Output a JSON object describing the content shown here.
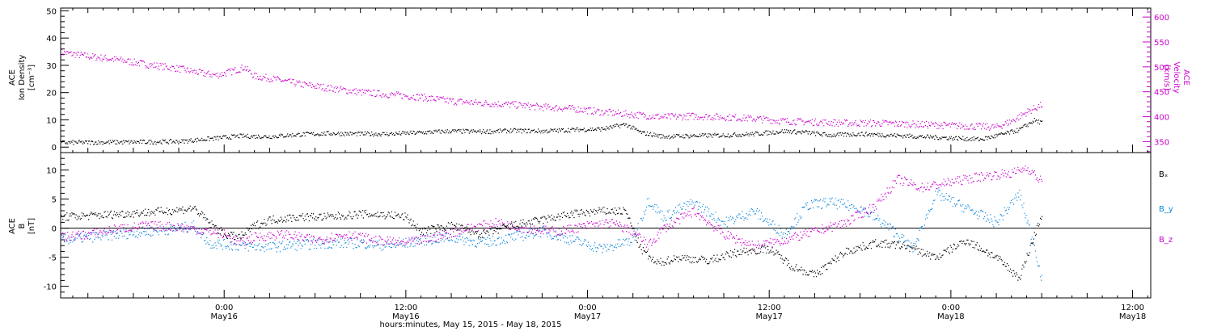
{
  "colors": {
    "black": "#000000",
    "magenta": "#cc00cc",
    "blue": "#1188dd"
  },
  "x_title": "hours:minutes, May 15, 2015 - May 18, 2015",
  "x_ticks": [
    {
      "time": "0:00",
      "date": "May16",
      "hour": 18
    },
    {
      "time": "12:00",
      "date": "May16",
      "hour": 30
    },
    {
      "time": "0:00",
      "date": "May17",
      "hour": 42
    },
    {
      "time": "12:00",
      "date": "May17",
      "hour": 54
    },
    {
      "time": "0:00",
      "date": "May18",
      "hour": 66
    },
    {
      "time": "12:00",
      "date": "May18",
      "hour": 78
    }
  ],
  "chart_data": [
    {
      "type": "scatter",
      "panel": "top",
      "left_axis_label": [
        "ACE",
        "Ion Density",
        "[cm⁻³]"
      ],
      "right_axis_label": [
        "ACE",
        "Velocity",
        "[km/s]"
      ],
      "xlim_hours": [
        7.2,
        79.2
      ],
      "ylim_left": [
        -2,
        51
      ],
      "yticks_left": [
        0,
        10,
        20,
        30,
        40,
        50
      ],
      "ylim_right": [
        328,
        618
      ],
      "yticks_right": [
        350,
        400,
        450,
        500,
        550,
        600
      ],
      "series": [
        {
          "name": "Ion Density",
          "axis": "left",
          "color": "black",
          "points": [
            [
              7.2,
              1.8
            ],
            [
              9,
              1.9
            ],
            [
              12,
              2.0
            ],
            [
              15,
              2.2
            ],
            [
              17,
              3.2
            ],
            [
              19,
              4.2
            ],
            [
              21,
              4.0
            ],
            [
              23,
              4.8
            ],
            [
              25,
              5.2
            ],
            [
              27,
              5.0
            ],
            [
              29,
              5.0
            ],
            [
              31,
              5.5
            ],
            [
              33,
              6.0
            ],
            [
              35,
              5.8
            ],
            [
              37,
              6.2
            ],
            [
              39,
              6.0
            ],
            [
              41,
              6.5
            ],
            [
              43,
              6.8
            ],
            [
              44.5,
              8.5
            ],
            [
              45.5,
              5.5
            ],
            [
              47,
              4.0
            ],
            [
              49,
              4.3
            ],
            [
              51,
              4.5
            ],
            [
              53,
              5.0
            ],
            [
              55,
              6.0
            ],
            [
              56.5,
              5.5
            ],
            [
              58,
              4.5
            ],
            [
              60,
              5.0
            ],
            [
              62,
              4.5
            ],
            [
              64,
              4.0
            ],
            [
              66,
              3.5
            ],
            [
              68,
              3.0
            ],
            [
              69.5,
              5.0
            ],
            [
              70.5,
              6.5
            ],
            [
              71.5,
              10.0
            ],
            [
              72,
              9.0
            ]
          ]
        },
        {
          "name": "Velocity",
          "axis": "right",
          "color": "magenta",
          "points": [
            [
              7.2,
              530
            ],
            [
              9,
              522
            ],
            [
              11,
              515
            ],
            [
              13,
              505
            ],
            [
              15,
              497
            ],
            [
              16.5,
              488
            ],
            [
              17.5,
              484
            ],
            [
              18.5,
              492
            ],
            [
              19.3,
              500
            ],
            [
              20,
              482
            ],
            [
              21,
              478
            ],
            [
              23,
              466
            ],
            [
              25,
              458
            ],
            [
              27,
              450
            ],
            [
              29,
              445
            ],
            [
              31,
              440
            ],
            [
              33,
              432
            ],
            [
              35,
              428
            ],
            [
              37,
              425
            ],
            [
              39,
              420
            ],
            [
              41,
              417
            ],
            [
              43,
              410
            ],
            [
              45,
              405
            ],
            [
              47,
              400
            ],
            [
              49,
              402
            ],
            [
              51,
              400
            ],
            [
              53,
              397
            ],
            [
              55,
              392
            ],
            [
              57,
              390
            ],
            [
              59,
              388
            ],
            [
              61,
              388
            ],
            [
              63,
              386
            ],
            [
              65,
              384
            ],
            [
              67,
              382
            ],
            [
              69,
              380
            ],
            [
              70,
              392
            ],
            [
              71,
              410
            ],
            [
              72,
              425
            ]
          ]
        }
      ]
    },
    {
      "type": "scatter",
      "panel": "bottom",
      "left_axis_label": [
        "ACE",
        "B",
        "[nT]"
      ],
      "xlim_hours": [
        7.2,
        79.2
      ],
      "ylim": [
        -12,
        13
      ],
      "yticks": [
        -10,
        -5,
        0,
        5,
        10
      ],
      "zero_line": true,
      "series": [
        {
          "name": "Bₓ",
          "color": "black",
          "points": [
            [
              7.2,
              2.0
            ],
            [
              9,
              2.2
            ],
            [
              11,
              2.5
            ],
            [
              13,
              2.8
            ],
            [
              15,
              3.2
            ],
            [
              16,
              3.5
            ],
            [
              17,
              1.0
            ],
            [
              18,
              -1.0
            ],
            [
              19,
              -1.5
            ],
            [
              20,
              0.5
            ],
            [
              21,
              1.5
            ],
            [
              23,
              2.0
            ],
            [
              25,
              2.0
            ],
            [
              27,
              2.5
            ],
            [
              29,
              2.3
            ],
            [
              30,
              2.0
            ],
            [
              31,
              -0.5
            ],
            [
              33,
              0.5
            ],
            [
              35,
              -1.0
            ],
            [
              37,
              0.5
            ],
            [
              39,
              1.5
            ],
            [
              41,
              2.5
            ],
            [
              43,
              3.0
            ],
            [
              44.5,
              3.0
            ],
            [
              45.5,
              -3.5
            ],
            [
              46.5,
              -6.0
            ],
            [
              48,
              -5.0
            ],
            [
              50,
              -5.5
            ],
            [
              52,
              -4.0
            ],
            [
              54,
              -3.5
            ],
            [
              55.5,
              -6.5
            ],
            [
              57,
              -8.0
            ],
            [
              59,
              -4.0
            ],
            [
              61,
              -2.5
            ],
            [
              63,
              -3.0
            ],
            [
              65,
              -5.0
            ],
            [
              67,
              -2.0
            ],
            [
              69,
              -5.0
            ],
            [
              70.5,
              -8.5
            ],
            [
              72,
              2.5
            ]
          ]
        },
        {
          "name": "B_y",
          "color": "blue",
          "points": [
            [
              7.2,
              -2.0
            ],
            [
              9,
              -1.5
            ],
            [
              11,
              -1.0
            ],
            [
              13,
              -0.5
            ],
            [
              15,
              0.0
            ],
            [
              16,
              0.5
            ],
            [
              17,
              -2.5
            ],
            [
              19,
              -3.0
            ],
            [
              21,
              -3.2
            ],
            [
              23,
              -2.8
            ],
            [
              25,
              -2.5
            ],
            [
              27,
              -2.5
            ],
            [
              29,
              -3.0
            ],
            [
              31,
              -2.0
            ],
            [
              33,
              -1.5
            ],
            [
              35,
              -2.5
            ],
            [
              37,
              -1.5
            ],
            [
              39,
              -0.5
            ],
            [
              41,
              -2.0
            ],
            [
              43,
              -3.5
            ],
            [
              45,
              -2.0
            ],
            [
              46,
              5.0
            ],
            [
              47,
              2.0
            ],
            [
              49,
              4.5
            ],
            [
              51,
              1.0
            ],
            [
              53,
              3.0
            ],
            [
              55,
              -1.0
            ],
            [
              56.5,
              4.0
            ],
            [
              58,
              4.5
            ],
            [
              60,
              3.5
            ],
            [
              62,
              0.0
            ],
            [
              63.5,
              -3.5
            ],
            [
              65,
              6.0
            ],
            [
              67,
              3.5
            ],
            [
              69,
              1.0
            ],
            [
              70.5,
              6.0
            ],
            [
              71.5,
              -3.0
            ],
            [
              72,
              -9.0
            ]
          ]
        },
        {
          "name": "B_z",
          "color": "magenta",
          "points": [
            [
              7.2,
              -1.5
            ],
            [
              9,
              -1.0
            ],
            [
              11,
              0.0
            ],
            [
              13,
              0.5
            ],
            [
              15,
              0.3
            ],
            [
              17,
              -0.5
            ],
            [
              18,
              -1.0
            ],
            [
              19,
              -2.5
            ],
            [
              20,
              -1.5
            ],
            [
              22,
              -1.0
            ],
            [
              24,
              -2.0
            ],
            [
              26,
              -1.0
            ],
            [
              28,
              -2.0
            ],
            [
              30,
              -2.5
            ],
            [
              32,
              -1.5
            ],
            [
              34,
              0.0
            ],
            [
              36,
              1.0
            ],
            [
              38,
              0.0
            ],
            [
              40,
              -0.5
            ],
            [
              42,
              0.5
            ],
            [
              43.5,
              1.0
            ],
            [
              45,
              -0.5
            ],
            [
              46,
              -3.0
            ],
            [
              47,
              0.0
            ],
            [
              49,
              3.0
            ],
            [
              51,
              -1.0
            ],
            [
              53,
              -3.0
            ],
            [
              55,
              -2.0
            ],
            [
              57,
              -0.5
            ],
            [
              59,
              1.0
            ],
            [
              61,
              4.0
            ],
            [
              62.5,
              8.5
            ],
            [
              64,
              7.0
            ],
            [
              66,
              8.0
            ],
            [
              68,
              9.0
            ],
            [
              70,
              9.5
            ],
            [
              71,
              10.5
            ],
            [
              72,
              8.0
            ]
          ]
        }
      ]
    }
  ]
}
